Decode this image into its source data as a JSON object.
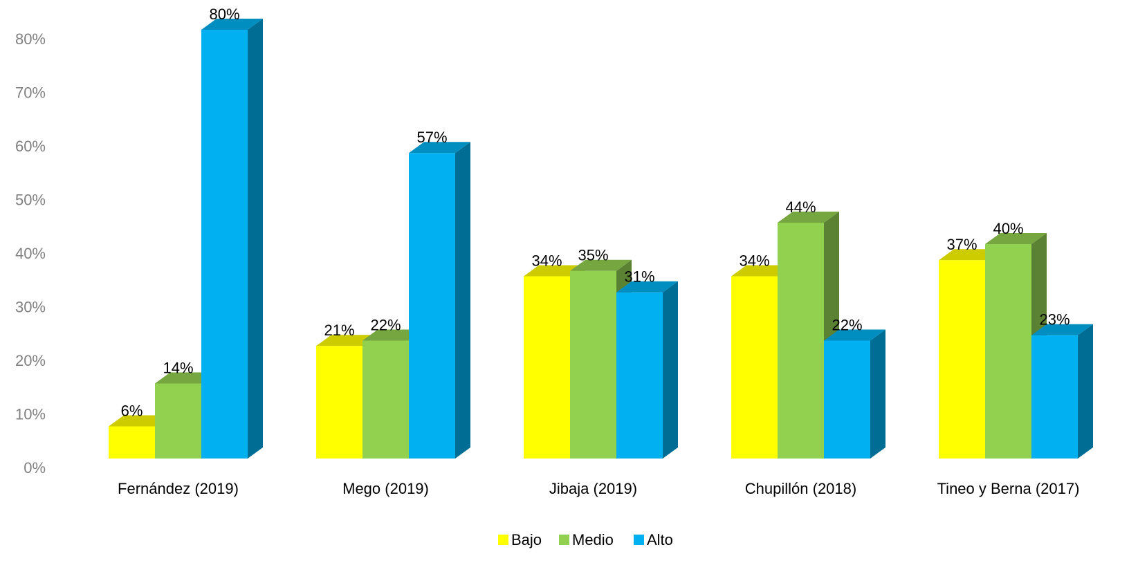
{
  "chart_data": {
    "type": "bar3d",
    "categories": [
      "Fernández (2019)",
      "Mego (2019)",
      "Jibaja (2019)",
      "Chupillón (2018)",
      "Tineo y Berna (2017)"
    ],
    "series": [
      {
        "name": "Bajo",
        "color": "#ffff00",
        "values": [
          6,
          21,
          34,
          34,
          37
        ],
        "value_labels": [
          "6%",
          "21%",
          "34%",
          "34%",
          "37%"
        ]
      },
      {
        "name": "Medio",
        "color": "#92d050",
        "values": [
          14,
          22,
          35,
          44,
          40
        ],
        "value_labels": [
          "14%",
          "22%",
          "35%",
          "44%",
          "40%"
        ]
      },
      {
        "name": "Alto",
        "color": "#00b0f0",
        "values": [
          80,
          57,
          31,
          22,
          23
        ],
        "value_labels": [
          "80%",
          "57%",
          "31%",
          "22%",
          "23%"
        ]
      }
    ],
    "ylim": [
      0,
      80
    ],
    "yticks": [
      {
        "value": 0,
        "label": "0%"
      },
      {
        "value": 10,
        "label": "10%"
      },
      {
        "value": 20,
        "label": "20%"
      },
      {
        "value": 30,
        "label": "30%"
      },
      {
        "value": 40,
        "label": "40%"
      },
      {
        "value": 50,
        "label": "50%"
      },
      {
        "value": 60,
        "label": "60%"
      },
      {
        "value": 70,
        "label": "70%"
      },
      {
        "value": 80,
        "label": "80%"
      }
    ],
    "legend": "bottom"
  }
}
